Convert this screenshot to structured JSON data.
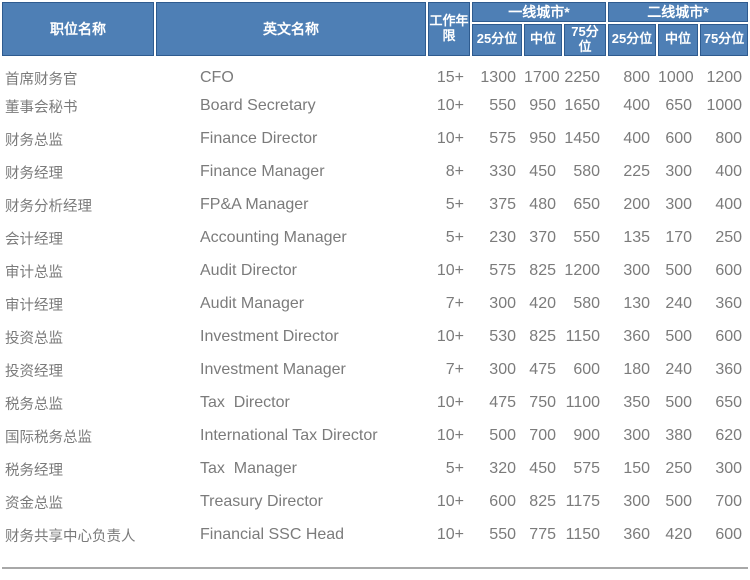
{
  "table": {
    "header": {
      "title_cn": "职位名称",
      "title_en": "英文名称",
      "years": "工作年限",
      "tier1_group": "一线城市*",
      "tier2_group": "二线城市*",
      "percentiles": [
        "25分位",
        "中位",
        "75分位"
      ]
    },
    "rows": [
      {
        "title_cn": "首席财务官",
        "title_en": "CFO",
        "years": "15+",
        "tier1": [
          1300,
          1700,
          2250
        ],
        "tier2": [
          800,
          1000,
          1200
        ]
      },
      {
        "title_cn": "董事会秘书",
        "title_en": "Board Secretary",
        "years": "10+",
        "tier1": [
          550,
          950,
          1650
        ],
        "tier2": [
          400,
          650,
          1000
        ]
      },
      {
        "title_cn": "财务总监",
        "title_en": "Finance Director",
        "years": "10+",
        "tier1": [
          575,
          950,
          1450
        ],
        "tier2": [
          400,
          600,
          800
        ]
      },
      {
        "title_cn": "财务经理",
        "title_en": "Finance Manager",
        "years": "8+",
        "tier1": [
          330,
          450,
          580
        ],
        "tier2": [
          225,
          300,
          400
        ]
      },
      {
        "title_cn": "财务分析经理",
        "title_en": "FP&A Manager",
        "years": "5+",
        "tier1": [
          375,
          480,
          650
        ],
        "tier2": [
          200,
          300,
          400
        ]
      },
      {
        "title_cn": "会计经理",
        "title_en": "Accounting Manager",
        "years": "5+",
        "tier1": [
          230,
          370,
          550
        ],
        "tier2": [
          135,
          170,
          250
        ]
      },
      {
        "title_cn": "审计总监",
        "title_en": "Audit Director",
        "years": "10+",
        "tier1": [
          575,
          825,
          1200
        ],
        "tier2": [
          300,
          500,
          600
        ]
      },
      {
        "title_cn": "审计经理",
        "title_en": "Audit Manager",
        "years": "7+",
        "tier1": [
          300,
          420,
          580
        ],
        "tier2": [
          130,
          240,
          360
        ]
      },
      {
        "title_cn": "投资总监",
        "title_en": "Investment Director",
        "years": "10+",
        "tier1": [
          530,
          825,
          1150
        ],
        "tier2": [
          360,
          500,
          600
        ]
      },
      {
        "title_cn": "投资经理",
        "title_en": "Investment Manager",
        "years": "7+",
        "tier1": [
          300,
          475,
          600
        ],
        "tier2": [
          180,
          240,
          360
        ]
      },
      {
        "title_cn": "税务总监",
        "title_en": "Tax  Director",
        "years": "10+",
        "tier1": [
          475,
          750,
          1100
        ],
        "tier2": [
          350,
          500,
          650
        ]
      },
      {
        "title_cn": "国际税务总监",
        "title_en": "International Tax Director",
        "years": "10+",
        "tier1": [
          500,
          700,
          900
        ],
        "tier2": [
          300,
          380,
          620
        ]
      },
      {
        "title_cn": "税务经理",
        "title_en": "Tax  Manager",
        "years": "5+",
        "tier1": [
          320,
          450,
          575
        ],
        "tier2": [
          150,
          250,
          300
        ]
      },
      {
        "title_cn": "资金总监",
        "title_en": "Treasury Director",
        "years": "10+",
        "tier1": [
          600,
          825,
          1175
        ],
        "tier2": [
          300,
          500,
          700
        ]
      },
      {
        "title_cn": "财务共享中心负责人",
        "title_en": "Financial SSC Head",
        "years": "10+",
        "tier1": [
          550,
          775,
          1150
        ],
        "tier2": [
          360,
          420,
          600
        ]
      }
    ],
    "colors": {
      "header_bg": "#4E7FB5",
      "header_border": "#2E5B8F",
      "header_text": "#ffffff",
      "body_text": "#7b7b7b",
      "bottom_rule": "#a8a8a8"
    },
    "cell_names": [
      "job-title-cn",
      "job-title-en",
      "work-years",
      "tier1-p25",
      "tier1-median",
      "tier1-p75",
      "tier2-p25",
      "tier2-median",
      "tier2-p75"
    ]
  }
}
